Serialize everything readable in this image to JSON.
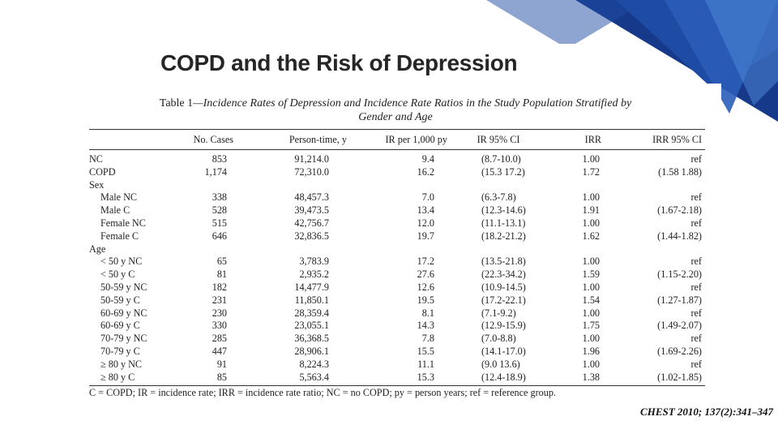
{
  "slide": {
    "title": "COPD and the Risk of Depression",
    "citation": "CHEST 2010; 137(2):341–347"
  },
  "table": {
    "caption_label": "Table 1",
    "caption_text_line1": "—Incidence Rates of Depression and Incidence Rate Ratios in the Study Population Stratified by",
    "caption_text_line2": "Gender and Age",
    "headers": [
      "",
      "No. Cases",
      "Person-time, y",
      "IR per 1,000 py",
      "IR 95% CI",
      "IRR",
      "IRR 95% CI"
    ],
    "rows": [
      {
        "label": "NC",
        "cases": "853",
        "person_time": "91,214.0",
        "ir": "9.4",
        "ir_ci": "(8.7-10.0)",
        "irr": "1.00",
        "irr_ci": "ref",
        "kind": "top"
      },
      {
        "label": "COPD",
        "cases": "1,174",
        "person_time": "72,310.0",
        "ir": "16.2",
        "ir_ci": "(15.3 17.2)",
        "irr": "1.72",
        "irr_ci": "(1.58 1.88)",
        "kind": "top"
      },
      {
        "label": "Sex",
        "kind": "group"
      },
      {
        "label": "Male NC",
        "cases": "338",
        "person_time": "48,457.3",
        "ir": "7.0",
        "ir_ci": "(6.3-7.8)",
        "irr": "1.00",
        "irr_ci": "ref",
        "kind": "sub"
      },
      {
        "label": "Male C",
        "cases": "528",
        "person_time": "39,473.5",
        "ir": "13.4",
        "ir_ci": "(12.3-14.6)",
        "irr": "1.91",
        "irr_ci": "(1.67-2.18)",
        "kind": "sub"
      },
      {
        "label": "Female NC",
        "cases": "515",
        "person_time": "42,756.7",
        "ir": "12.0",
        "ir_ci": "(11.1-13.1)",
        "irr": "1.00",
        "irr_ci": "ref",
        "kind": "sub"
      },
      {
        "label": "Female C",
        "cases": "646",
        "person_time": "32,836.5",
        "ir": "19.7",
        "ir_ci": "(18.2-21.2)",
        "irr": "1.62",
        "irr_ci": "(1.44-1.82)",
        "kind": "sub"
      },
      {
        "label": "Age",
        "kind": "group"
      },
      {
        "label": "< 50 y NC",
        "cases": "65",
        "person_time": "3,783.9",
        "ir": "17.2",
        "ir_ci": "(13.5-21.8)",
        "irr": "1.00",
        "irr_ci": "ref",
        "kind": "sub"
      },
      {
        "label": "< 50 y C",
        "cases": "81",
        "person_time": "2,935.2",
        "ir": "27.6",
        "ir_ci": "(22.3-34.2)",
        "irr": "1.59",
        "irr_ci": "(1.15-2.20)",
        "kind": "sub"
      },
      {
        "label": "50-59 y NC",
        "cases": "182",
        "person_time": "14,477.9",
        "ir": "12.6",
        "ir_ci": "(10.9-14.5)",
        "irr": "1.00",
        "irr_ci": "ref",
        "kind": "sub"
      },
      {
        "label": "50-59 y C",
        "cases": "231",
        "person_time": "11,850.1",
        "ir": "19.5",
        "ir_ci": "(17.2-22.1)",
        "irr": "1.54",
        "irr_ci": "(1.27-1.87)",
        "kind": "sub"
      },
      {
        "label": "60-69 y NC",
        "cases": "230",
        "person_time": "28,359.4",
        "ir": "8.1",
        "ir_ci": "(7.1-9.2)",
        "irr": "1.00",
        "irr_ci": "ref",
        "kind": "sub"
      },
      {
        "label": "60-69 y C",
        "cases": "330",
        "person_time": "23,055.1",
        "ir": "14.3",
        "ir_ci": "(12.9-15.9)",
        "irr": "1.75",
        "irr_ci": "(1.49-2.07)",
        "kind": "sub"
      },
      {
        "label": "70-79 y NC",
        "cases": "285",
        "person_time": "36,368.5",
        "ir": "7.8",
        "ir_ci": "(7.0-8.8)",
        "irr": "1.00",
        "irr_ci": "ref",
        "kind": "sub"
      },
      {
        "label": "70-79 y C",
        "cases": "447",
        "person_time": "28,906.1",
        "ir": "15.5",
        "ir_ci": "(14.1-17.0)",
        "irr": "1.96",
        "irr_ci": "(1.69-2.26)",
        "kind": "sub"
      },
      {
        "label": "≥ 80 y NC",
        "cases": "91",
        "person_time": "8,224.3",
        "ir": "11.1",
        "ir_ci": "(9.0 13.6)",
        "irr": "1.00",
        "irr_ci": "ref",
        "kind": "sub"
      },
      {
        "label": "≥ 80 y C",
        "cases": "85",
        "person_time": "5,563.4",
        "ir": "15.3",
        "ir_ci": "(12.4-18.9)",
        "irr": "1.38",
        "irr_ci": "(1.02-1.85)",
        "kind": "sub"
      }
    ],
    "footnote": "C = COPD; IR = incidence rate; IRR = incidence rate ratio; NC = no COPD; py = person years; ref = reference group."
  },
  "colors": {
    "decor_dark": "#16398a",
    "decor_mid": "#2a5db8",
    "decor_light": "#4f86d6"
  }
}
